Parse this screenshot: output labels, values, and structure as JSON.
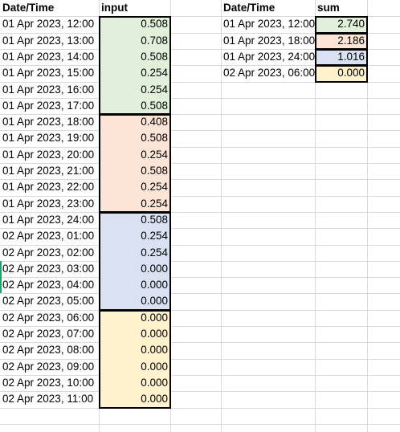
{
  "input_table": {
    "header_datetime": "Date/Time",
    "header_value": "input",
    "rows": [
      {
        "dt": "01 Apr 2023, 12:00",
        "val": "0.508"
      },
      {
        "dt": "01 Apr 2023, 13:00",
        "val": "0.708"
      },
      {
        "dt": "01 Apr 2023, 14:00",
        "val": "0.508"
      },
      {
        "dt": "01 Apr 2023, 15:00",
        "val": "0.254"
      },
      {
        "dt": "01 Apr 2023, 16:00",
        "val": "0.254"
      },
      {
        "dt": "01 Apr 2023, 17:00",
        "val": "0.508"
      },
      {
        "dt": "01 Apr 2023, 18:00",
        "val": "0.408"
      },
      {
        "dt": "01 Apr 2023, 19:00",
        "val": "0.508"
      },
      {
        "dt": "01 Apr 2023, 20:00",
        "val": "0.254"
      },
      {
        "dt": "01 Apr 2023, 21:00",
        "val": "0.508"
      },
      {
        "dt": "01 Apr 2023, 22:00",
        "val": "0.254"
      },
      {
        "dt": "01 Apr 2023, 23:00",
        "val": "0.254"
      },
      {
        "dt": "01 Apr 2023, 24:00",
        "val": "0.508"
      },
      {
        "dt": "02 Apr 2023, 01:00",
        "val": "0.254"
      },
      {
        "dt": "02 Apr 2023, 02:00",
        "val": "0.254"
      },
      {
        "dt": "02 Apr 2023, 03:00",
        "val": "0.000"
      },
      {
        "dt": "02 Apr 2023, 04:00",
        "val": "0.000"
      },
      {
        "dt": "02 Apr 2023, 05:00",
        "val": "0.000"
      },
      {
        "dt": "02 Apr 2023, 06:00",
        "val": "0.000"
      },
      {
        "dt": "02 Apr 2023, 07:00",
        "val": "0.000"
      },
      {
        "dt": "02 Apr 2023, 08:00",
        "val": "0.000"
      },
      {
        "dt": "02 Apr 2023, 09:00",
        "val": "0.000"
      },
      {
        "dt": "02 Apr 2023, 10:00",
        "val": "0.000"
      },
      {
        "dt": "02 Apr 2023, 11:00",
        "val": "0.000"
      }
    ]
  },
  "sum_table": {
    "header_datetime": "Date/Time",
    "header_value": "sum",
    "rows": [
      {
        "dt": "01 Apr 2023, 12:00",
        "val": "2.740"
      },
      {
        "dt": "01 Apr 2023, 18:00",
        "val": "2.186"
      },
      {
        "dt": "01 Apr 2023, 24:00",
        "val": "1.016"
      },
      {
        "dt": "02 Apr 2023, 06:00",
        "val": "0.000"
      }
    ]
  },
  "group_colors": [
    "#e2efda",
    "#fce4d6",
    "#d9e1f2",
    "#fff2cc"
  ],
  "gridline_color": "#d9d9d9",
  "border_color": "#000000"
}
